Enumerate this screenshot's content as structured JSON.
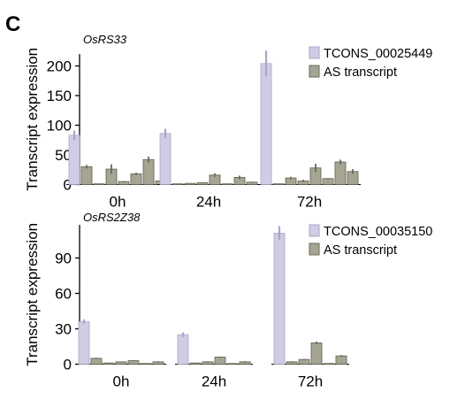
{
  "panel_label": "C",
  "colors": {
    "highlight_fill": "#cfcde3",
    "highlight_stroke": "#a9a6c9",
    "as_fill": "#a6a593",
    "as_stroke": "#6a6a5a",
    "axis": "#000000"
  },
  "chart_data": [
    {
      "type": "bar",
      "title": "OsRS33",
      "ylabel": "Transcript expression",
      "ylim": [
        0,
        220
      ],
      "yticks": [
        0,
        50,
        100,
        150,
        200
      ],
      "tick_labels": [
        "0",
        "50",
        "100",
        "150",
        "200"
      ],
      "categories": [
        "0h",
        "24h",
        "72h"
      ],
      "legend": {
        "placement": "top-right",
        "entries": [
          "TCONS_00025449",
          "AS transcript"
        ]
      },
      "grid": false,
      "series": [
        {
          "name": "TCONS_00025449",
          "values": [
            83,
            86,
            204
          ],
          "errors": [
            8,
            8,
            22
          ]
        },
        {
          "name": "AS transcript",
          "values": [
            [
              30,
              1,
              26,
              5,
              18,
              42,
              6
            ],
            [
              1,
              2,
              3,
              16,
              1,
              12,
              4
            ],
            [
              1,
              11,
              6,
              28,
              10,
              38,
              22
            ]
          ],
          "errors": [
            [
              3,
              0,
              8,
              1,
              2,
              5,
              1
            ],
            [
              0,
              0,
              1,
              3,
              0,
              3,
              1
            ],
            [
              0,
              2,
              2,
              7,
              1,
              4,
              4
            ]
          ]
        }
      ]
    },
    {
      "type": "bar",
      "title": "OsRS2Z38",
      "ylabel": "Transcript expression",
      "ylim": [
        0,
        118
      ],
      "yticks": [
        0,
        30,
        60,
        90
      ],
      "tick_labels": [
        "0",
        "30",
        "60",
        "90"
      ],
      "categories": [
        "0h",
        "24h",
        "72h"
      ],
      "legend": {
        "placement": "top-right",
        "entries": [
          "TCONS_00035150",
          "AS transcript"
        ]
      },
      "grid": false,
      "series": [
        {
          "name": "TCONS_00035150",
          "values": [
            36,
            25,
            111
          ],
          "errors": [
            2,
            2,
            6
          ]
        },
        {
          "name": "AS transcript",
          "values": [
            [
              5,
              1,
              2,
              3,
              0,
              2
            ],
            [
              1,
              2,
              6,
              0,
              2
            ],
            [
              2,
              4,
              18,
              0,
              7
            ]
          ],
          "errors": [
            [
              0.5,
              0.3,
              0.3,
              0.4,
              0,
              0.5
            ],
            [
              0.2,
              0.4,
              0.5,
              0,
              0.6
            ],
            [
              0.5,
              0.5,
              1.2,
              0,
              0.8
            ]
          ]
        }
      ]
    }
  ]
}
